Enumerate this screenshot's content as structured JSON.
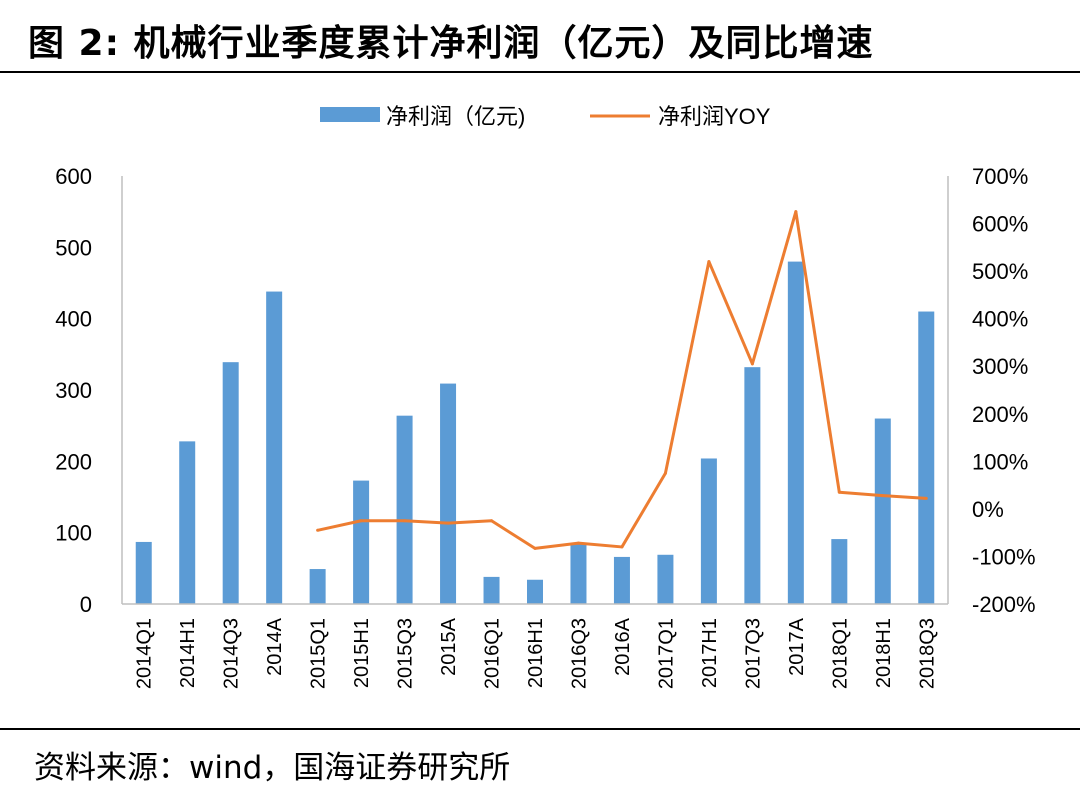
{
  "figure": {
    "title": "图 2:  机械行业季度累计净利润（亿元）及同比增速",
    "source": "资料来源：wind，国海证券研究所"
  },
  "colors": {
    "bar": "#5B9BD5",
    "line": "#ED7D31",
    "axis": "#BFBFBF"
  },
  "chart_data": {
    "type": "bar",
    "title": "",
    "categories": [
      "2014Q1",
      "2014H1",
      "2014Q3",
      "2014A",
      "2015Q1",
      "2015H1",
      "2015Q3",
      "2015A",
      "2016Q1",
      "2016H1",
      "2016Q3",
      "2016A",
      "2017Q1",
      "2017H1",
      "2017Q3",
      "2017A",
      "2018Q1",
      "2018H1",
      "2018Q3"
    ],
    "series": [
      {
        "name": "净利润（亿元)",
        "type": "bar",
        "axis": "left",
        "values": [
          87,
          228,
          339,
          438,
          49,
          173,
          264,
          309,
          38,
          34,
          85,
          66,
          69,
          204,
          332,
          480,
          91,
          260,
          410
        ]
      },
      {
        "name": "净利润YOY",
        "type": "line",
        "axis": "right",
        "unit": "%",
        "values": [
          null,
          null,
          null,
          null,
          -45,
          -25,
          -25,
          -30,
          -25,
          -83,
          -72,
          -80,
          75,
          520,
          305,
          625,
          35,
          28,
          22
        ]
      }
    ],
    "y_left": {
      "min": 0,
      "max": 600,
      "ticks": [
        0,
        100,
        200,
        300,
        400,
        500,
        600
      ]
    },
    "y_right": {
      "min": -200,
      "max": 700,
      "ticks": [
        -200,
        -100,
        0,
        100,
        200,
        300,
        400,
        500,
        600,
        700
      ],
      "tick_labels": [
        "-200%",
        "-100%",
        "0%",
        "100%",
        "200%",
        "300%",
        "400%",
        "500%",
        "600%",
        "700%"
      ]
    },
    "legend": {
      "position": "top-center",
      "labels": [
        "净利润（亿元)",
        "净利润YOY"
      ]
    },
    "grid": false
  }
}
